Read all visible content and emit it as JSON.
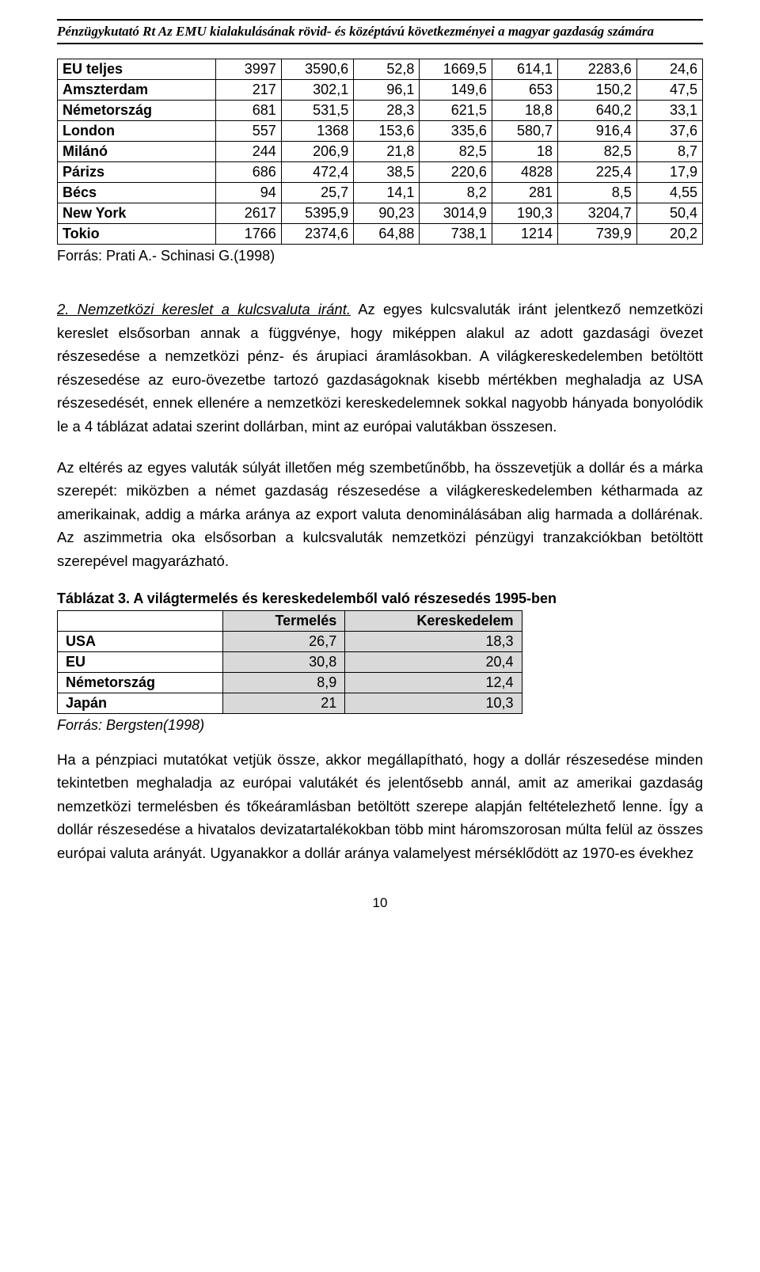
{
  "header": {
    "text": "Pénzügykutató Rt  Az EMU kialakulásának rövid- és középtávú következményei a magyar gazdaság számára"
  },
  "table1": {
    "rows": [
      {
        "label": "EU teljes",
        "bold": true,
        "cells": [
          "3997",
          "3590,6",
          "52,8",
          "1669,5",
          "614,1",
          "2283,6",
          "24,6"
        ]
      },
      {
        "label": "Amszterdam",
        "bold": true,
        "cells": [
          "217",
          "302,1",
          "96,1",
          "149,6",
          "653",
          "150,2",
          "47,5"
        ]
      },
      {
        "label": "Németország",
        "bold": true,
        "cells": [
          "681",
          "531,5",
          "28,3",
          "621,5",
          "18,8",
          "640,2",
          "33,1"
        ]
      },
      {
        "label": "London",
        "bold": true,
        "cells": [
          "557",
          "1368",
          "153,6",
          "335,6",
          "580,7",
          "916,4",
          "37,6"
        ]
      },
      {
        "label": "Milánó",
        "bold": true,
        "cells": [
          "244",
          "206,9",
          "21,8",
          "82,5",
          "18",
          "82,5",
          "8,7"
        ]
      },
      {
        "label": "Párizs",
        "bold": true,
        "cells": [
          "686",
          "472,4",
          "38,5",
          "220,6",
          "4828",
          "225,4",
          "17,9"
        ]
      },
      {
        "label": "Bécs",
        "bold": true,
        "cells": [
          "94",
          "25,7",
          "14,1",
          "8,2",
          "281",
          "8,5",
          "4,55"
        ]
      },
      {
        "label": "New York",
        "bold": true,
        "cells": [
          "2617",
          "5395,9",
          "90,23",
          "3014,9",
          "190,3",
          "3204,7",
          "50,4"
        ]
      },
      {
        "label": "Tokio",
        "bold": true,
        "cells": [
          "1766",
          "2374,6",
          "64,88",
          "738,1",
          "1214",
          "739,9",
          "20,2"
        ]
      }
    ],
    "source": "Forrás: Prati A.- Schinasi G.(1998)",
    "col_widths": [
      "24%",
      "10%",
      "11%",
      "10%",
      "11%",
      "10%",
      "12%",
      "10%"
    ]
  },
  "para1": {
    "lead": "2. Nemzetközi kereslet a kulcsvaluta iránt.",
    "rest": " Az egyes kulcsvaluták iránt jelentkező nemzetközi kereslet elsősorban annak a függvénye, hogy miképpen alakul az adott gazdasági övezet részesedése a nemzetközi pénz- és árupiaci áramlásokban. A világkereskedelemben betöltött részesedése az euro-övezetbe tartozó gazdaságoknak kisebb mértékben meghaladja az USA részesedését, ennek ellenére a nemzetközi kereskedelemnek sokkal nagyobb hányada bonyolódik le a 4 táblázat adatai szerint dollárban, mint az európai valutákban összesen."
  },
  "para2": {
    "text": "Az eltérés az egyes valuták súlyát illetően még szembetűnőbb, ha összevetjük a dollár és a márka szerepét: miközben a német gazdaság részesedése a világkereskedelemben kétharmada az amerikainak, addig a márka aránya az export valuta denominálásában alig harmada a dollárénak. Az aszimmetria oka elsősorban a kulcsvaluták nemzetközi pénzügyi tranzakciókban betöltött szerepével magyarázható."
  },
  "table2": {
    "caption": "Táblázat 3. A világtermelés és kereskedelemből való részesedés 1995-ben",
    "columns": [
      "Termelés",
      "Kereskedelem"
    ],
    "rows": [
      {
        "label": "USA",
        "cells": [
          "26,7",
          "18,3"
        ]
      },
      {
        "label": "EU",
        "cells": [
          "30,8",
          "20,4"
        ]
      },
      {
        "label": "Németország",
        "cells": [
          "8,9",
          "12,4"
        ]
      },
      {
        "label": "Japán",
        "cells": [
          "21",
          "10,3"
        ]
      }
    ],
    "source": "Forrás: Bergsten(1998)"
  },
  "para3": {
    "text": "Ha a pénzpiaci mutatókat vetjük össze, akkor megállapítható, hogy a dollár részesedése minden tekintetben meghaladja az európai valutákét és jelentősebb annál, amit az amerikai gazdaság nemzetközi termelésben és tőkeáramlásban betöltött szerepe alapján feltételezhető lenne. Így a dollár részesedése a hivatalos devizatartalékokban több mint háromszorosan múlta felül az összes európai valuta arányát. Ugyanakkor a dollár aránya valamelyest mérséklődött az 1970-es évekhez"
  },
  "page_number": "10",
  "colors": {
    "cell_shade": "#d9d9d9"
  }
}
